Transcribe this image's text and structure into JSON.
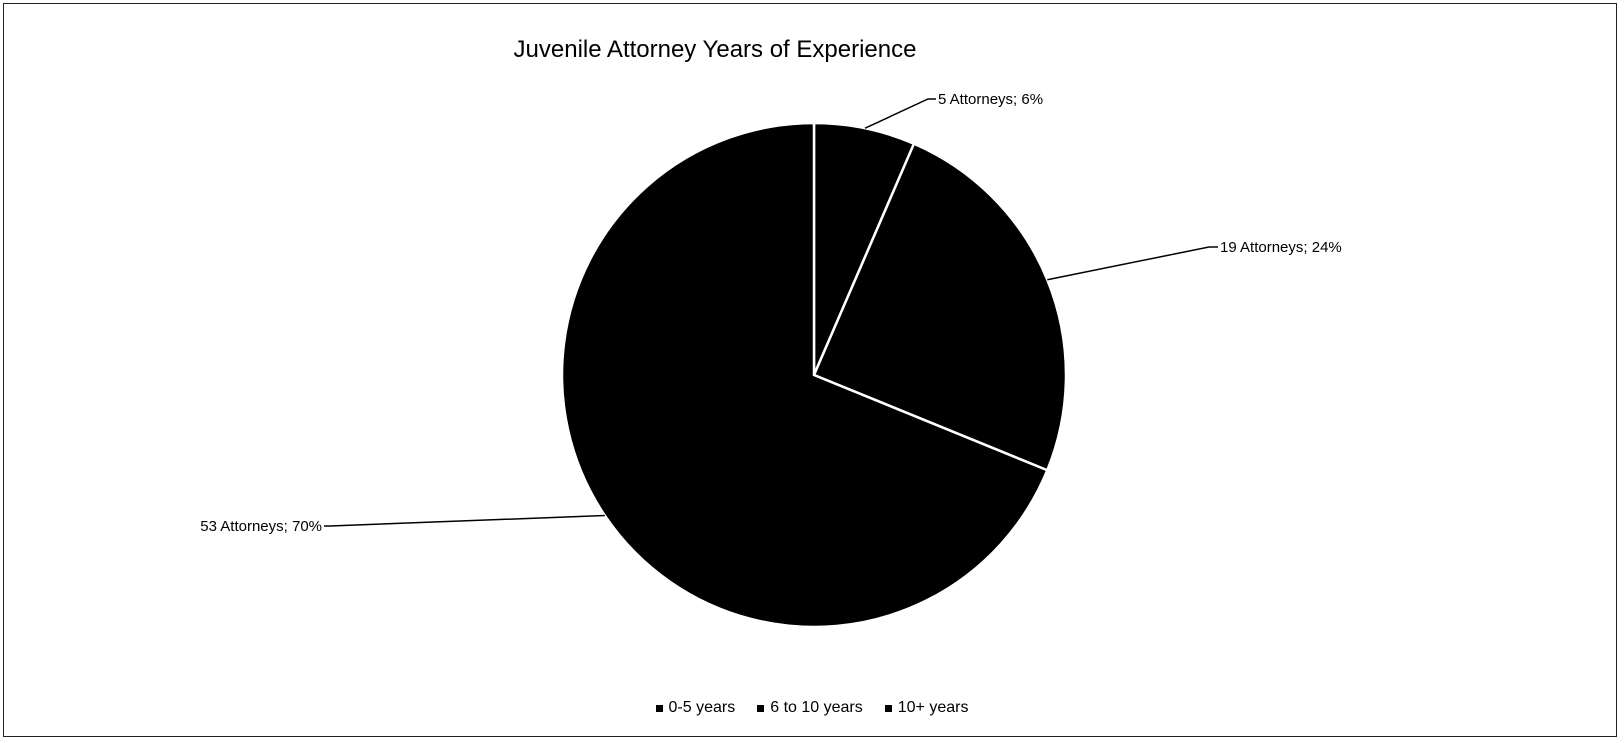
{
  "chart_data": {
    "type": "pie",
    "title": "Juvenile Attorney Years of Experience",
    "categories": [
      "0-5 years",
      "6 to 10 years",
      "10+ years"
    ],
    "values": [
      5,
      19,
      53
    ],
    "percentages": [
      6,
      24,
      70
    ],
    "data_labels": [
      "5 Attorneys; 6%",
      "19 Attorneys; 24%",
      "53 Attorneys; 70%"
    ],
    "colors": [
      "#000000",
      "#000000",
      "#000000"
    ],
    "slice_border_color": "#ffffff",
    "legend_position": "bottom"
  }
}
